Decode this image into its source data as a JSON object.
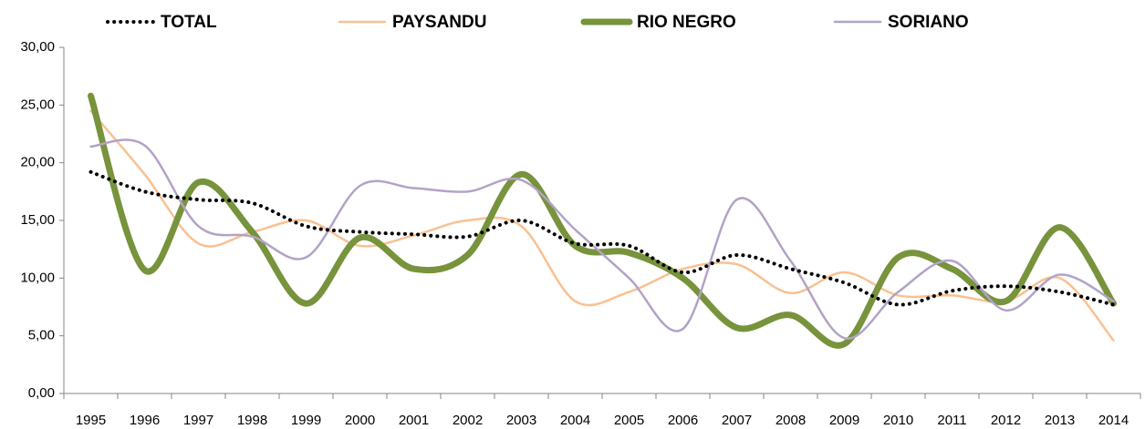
{
  "chart_data": {
    "type": "line",
    "categories": [
      "1995",
      "1996",
      "1997",
      "1998",
      "1999",
      "2000",
      "2001",
      "2002",
      "2003",
      "2004",
      "2005",
      "2006",
      "2007",
      "2008",
      "2009",
      "2010",
      "2011",
      "2012",
      "2013",
      "2014"
    ],
    "series": [
      {
        "name": "TOTAL",
        "color": "#000000",
        "dash": "dotted",
        "values": [
          19.2,
          17.5,
          16.8,
          16.5,
          14.5,
          14.0,
          13.8,
          13.6,
          15.0,
          13.0,
          12.8,
          10.5,
          12.0,
          10.8,
          9.6,
          7.7,
          8.9,
          9.3,
          8.8,
          7.7
        ]
      },
      {
        "name": "PAYSANDU",
        "color": "#fac090",
        "values": [
          24.5,
          19.0,
          13.0,
          14.0,
          15.0,
          12.8,
          13.7,
          15.0,
          14.5,
          8.0,
          8.8,
          10.8,
          11.2,
          8.7,
          10.5,
          8.5,
          8.5,
          8.0,
          10.0,
          4.6
        ]
      },
      {
        "name": "RIO NEGRO",
        "color": "#77933c",
        "values": [
          25.8,
          10.7,
          18.3,
          14.0,
          7.8,
          13.5,
          10.8,
          12.0,
          19.0,
          12.8,
          12.2,
          10.0,
          5.7,
          6.8,
          4.3,
          11.8,
          10.8,
          8.0,
          14.4,
          7.8
        ]
      },
      {
        "name": "SORIANO",
        "color": "#b3a2c7",
        "values": [
          21.4,
          21.5,
          14.5,
          13.6,
          11.8,
          18.0,
          17.8,
          17.5,
          18.5,
          14.2,
          10.0,
          5.6,
          16.8,
          11.5,
          4.8,
          8.8,
          11.5,
          7.2,
          10.3,
          8.0
        ]
      }
    ],
    "ylim": [
      0,
      30
    ],
    "yticks": [
      {
        "value": 0,
        "label": "0,00"
      },
      {
        "value": 5,
        "label": "5,00"
      },
      {
        "value": 10,
        "label": "10,00"
      },
      {
        "value": 15,
        "label": "15,00"
      },
      {
        "value": 20,
        "label": "20,00"
      },
      {
        "value": 25,
        "label": "25,00"
      },
      {
        "value": 30,
        "label": "30,00"
      }
    ],
    "legend": "top",
    "smooth": true,
    "grid": false
  }
}
